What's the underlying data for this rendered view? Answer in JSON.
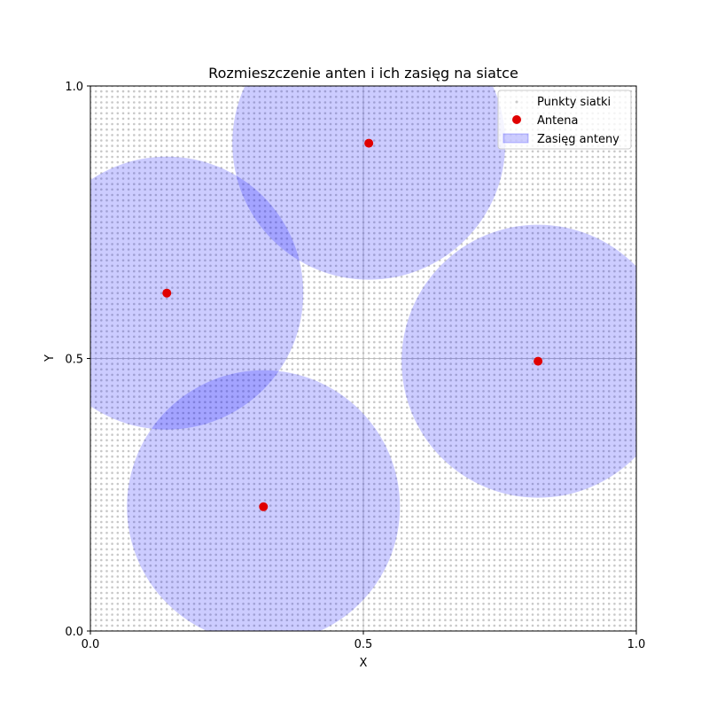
{
  "chart_data": {
    "type": "scatter",
    "title": "Rozmieszczenie anten i ich zasięg na siatce",
    "xlabel": "X",
    "ylabel": "Y",
    "xlim": [
      0.0,
      1.0
    ],
    "ylim": [
      0.0,
      1.0
    ],
    "xticks": [
      "0.0",
      "0.5",
      "1.0"
    ],
    "yticks": [
      "0.0",
      "0.5",
      "1.0"
    ],
    "grid": true,
    "legend_position": "top-right",
    "grid_points": {
      "name": "Punkty siatki",
      "step": 0.01,
      "color": "#c8c8c8"
    },
    "antennas": {
      "name": "Antena",
      "color": "#e00000",
      "points": [
        {
          "x": 0.14,
          "y": 0.62
        },
        {
          "x": 0.51,
          "y": 0.895
        },
        {
          "x": 0.82,
          "y": 0.495
        },
        {
          "x": 0.317,
          "y": 0.228
        }
      ]
    },
    "coverage": {
      "name": "Zasięg anteny",
      "radius": 0.25,
      "color": "#0000ff",
      "alpha": 0.2
    },
    "legend": [
      "Punkty siatki",
      "Antena",
      "Zasięg anteny"
    ]
  }
}
